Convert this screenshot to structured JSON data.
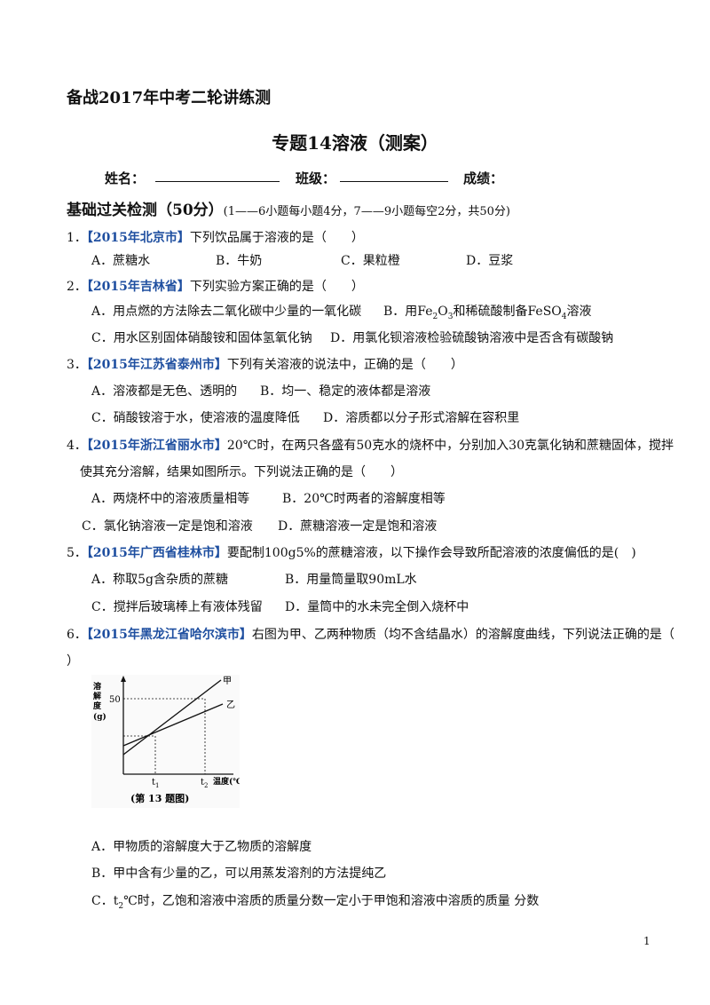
{
  "header": {
    "series": "备战2017年中考二轮讲练测",
    "title": "专题14溶液（测案）",
    "name_label": "姓名：",
    "class_label": "班级：",
    "score_label": "成绩："
  },
  "section": {
    "title": "基础过关检测（50分）",
    "note": "(1——6小题每小题4分，7——9小题每空2分，共50分)"
  },
  "questions": [
    {
      "num": "1．",
      "source": "【2015年北京市】",
      "text": "下列饮品属于溶液的是（　　）",
      "options": [
        "A．蔗糖水",
        "B．牛奶",
        "C．果粒橙",
        "D．豆浆"
      ]
    },
    {
      "num": "2．",
      "source": "【2015年吉林省】",
      "text": "下列实验方案正确的是（　　）",
      "options": [
        "A．用点燃的方法除去二氧化碳中少量的一氧化碳",
        "B．用",
        "和稀硫酸制备",
        "溶液",
        "C．用水区别固体硝酸铵和固体氢氧化钠",
        "D．用氯化钡溶液检验硫酸钠溶液中是否含有碳酸钠"
      ],
      "formulas": {
        "fe2o3_a": "Fe",
        "fe2o3_sub1": "2",
        "fe2o3_b": "O",
        "fe2o3_sub2": "3",
        "feso4_a": "FeSO",
        "feso4_sub": "4"
      }
    },
    {
      "num": "3．",
      "source": "【2015年江苏省泰州市】",
      "text": "下列有关溶液的说法中，正确的是（　　）",
      "options": [
        "A．溶液都是无色、透明的",
        "B．均一、稳定的液体都是溶液",
        "C．硝酸铵溶于水，使溶液的温度降低",
        "D．溶质都以分子形式溶解在容积里"
      ]
    },
    {
      "num": "4．",
      "source": "【2015年浙江省丽水市】",
      "text": "20℃时，在两只各盛有50克水的烧杯中，分别加入30克氯化钠和蔗糖固体，搅拌",
      "text2": "使其充分溶解，结果如图所示。下列说法正确的是（　　）",
      "options": [
        "A．两烧杯中的溶液质量相等",
        "B．20℃时两者的溶解度相等",
        "C．氯化钠溶液一定是饱和溶液",
        "D．蔗糖溶液一定是饱和溶液"
      ]
    },
    {
      "num": "5．",
      "source": "【2015年广西省桂林市】",
      "text": "要配制100g5%的蔗糖溶液，以下操作会导致所配溶液的浓度偏低的是(　)",
      "options": [
        "A．称取5g含杂质的蔗糖",
        "B．用量筒量取90mL水",
        "C．搅拌后玻璃棒上有液体残留",
        "D．量筒中的水未完全倒入烧杯中"
      ]
    },
    {
      "num": "6．",
      "source": "【2015年黑龙江省哈尔滨市】",
      "text": "右图为甲、乙两种物质（均不含结晶水）的溶解度曲线，下列说法正确的是（",
      "text2": "）",
      "options": [
        "A．甲物质的溶解度大于乙物质的溶解度",
        "B．甲中含有少量的乙，可以用蒸发溶剂的方法提纯乙",
        "C．",
        "℃时，乙饱和溶液中溶质的质量分数一定小于甲饱和溶液中溶质的质量 分数"
      ],
      "t2_main": "t",
      "t2_sub": "2"
    }
  ],
  "figure": {
    "ylabel": "溶解度(g)",
    "tick50": "50",
    "curve1": "甲",
    "curve2": "乙",
    "t1_main": "t",
    "t1_sub": "1",
    "t2_main": "t",
    "t2_sub": "2",
    "xlabel": "温度(℃)",
    "caption": "(第 13 题图)"
  },
  "footer": {
    "page": "1"
  }
}
